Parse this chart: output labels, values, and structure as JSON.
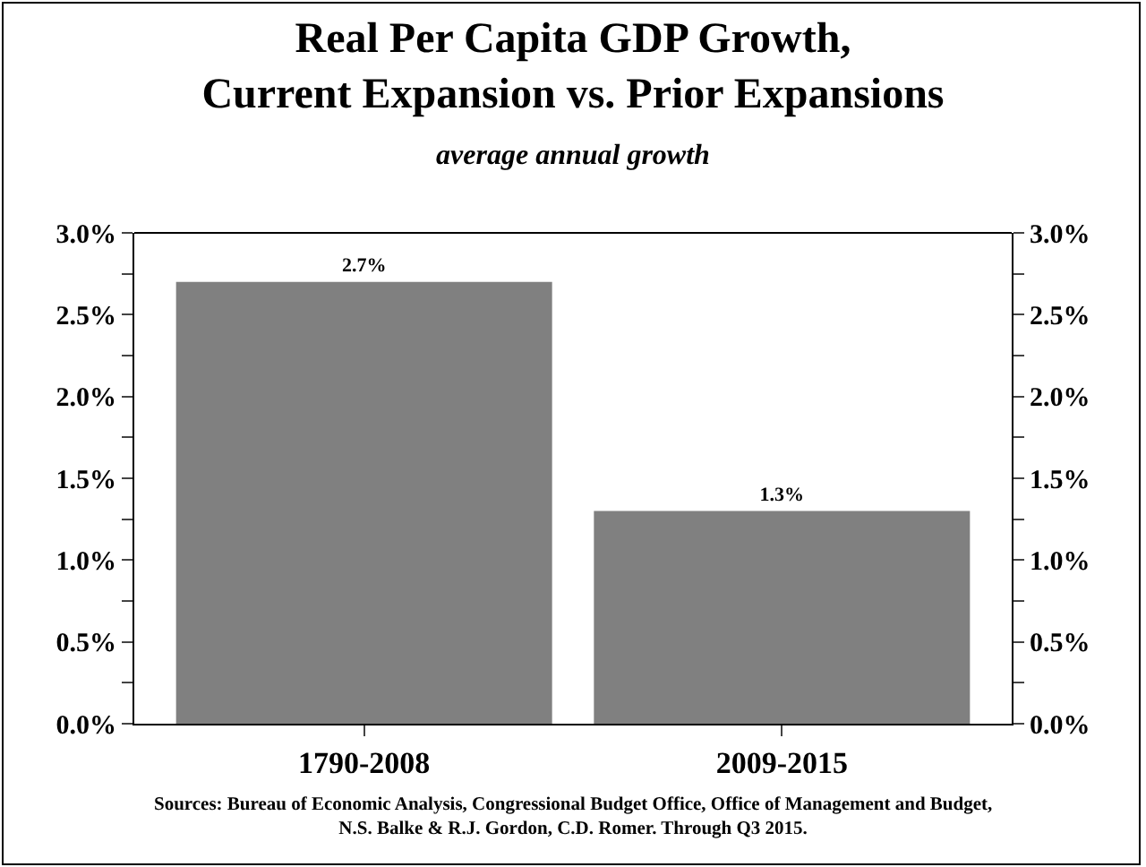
{
  "chart_data": {
    "type": "bar",
    "title": "Real Per Capita GDP Growth,\nCurrent Expansion vs. Prior Expansions",
    "subtitle": "average annual growth",
    "categories": [
      "1790-2008",
      "2009-2015"
    ],
    "values": [
      2.7,
      1.3
    ],
    "color": "#808080",
    "value_labels": [
      "2.7%",
      "1.3%"
    ],
    "ylim": [
      0,
      3
    ],
    "yticks": [
      {
        "value": 0,
        "label": "0.0%"
      },
      {
        "value": 0.25,
        "label": null
      },
      {
        "value": 0.5,
        "label": "0.5%"
      },
      {
        "value": 0.75,
        "label": null
      },
      {
        "value": 1,
        "label": "1.0%"
      },
      {
        "value": 1.25,
        "label": null
      },
      {
        "value": 1.5,
        "label": "1.5%"
      },
      {
        "value": 1.75,
        "label": null
      },
      {
        "value": 2,
        "label": "2.0%"
      },
      {
        "value": 2.25,
        "label": null
      },
      {
        "value": 2.5,
        "label": "2.5%"
      },
      {
        "value": 2.75,
        "label": null
      },
      {
        "value": 3,
        "label": "3.0%"
      }
    ],
    "y2lim": [
      0,
      3
    ],
    "y2ticks": [
      {
        "value": 0,
        "label": "0.0%"
      },
      {
        "value": 0.25,
        "label": null
      },
      {
        "value": 0.5,
        "label": "0.5%"
      },
      {
        "value": 0.75,
        "label": null
      },
      {
        "value": 1,
        "label": "1.0%"
      },
      {
        "value": 1.25,
        "label": null
      },
      {
        "value": 1.5,
        "label": "1.5%"
      },
      {
        "value": 1.75,
        "label": null
      },
      {
        "value": 2,
        "label": "2.0%"
      },
      {
        "value": 2.25,
        "label": null
      },
      {
        "value": 2.5,
        "label": "2.5%"
      },
      {
        "value": 2.75,
        "label": null
      },
      {
        "value": 3,
        "label": "3.0%"
      }
    ],
    "grid": false,
    "annotations": [
      "Sources: Bureau of Economic Analysis, Congressional Budget Office, Office of Management and Budget,\nN.S. Balke & R.J. Gordon, C.D. Romer. Through Q3 2015."
    ]
  }
}
